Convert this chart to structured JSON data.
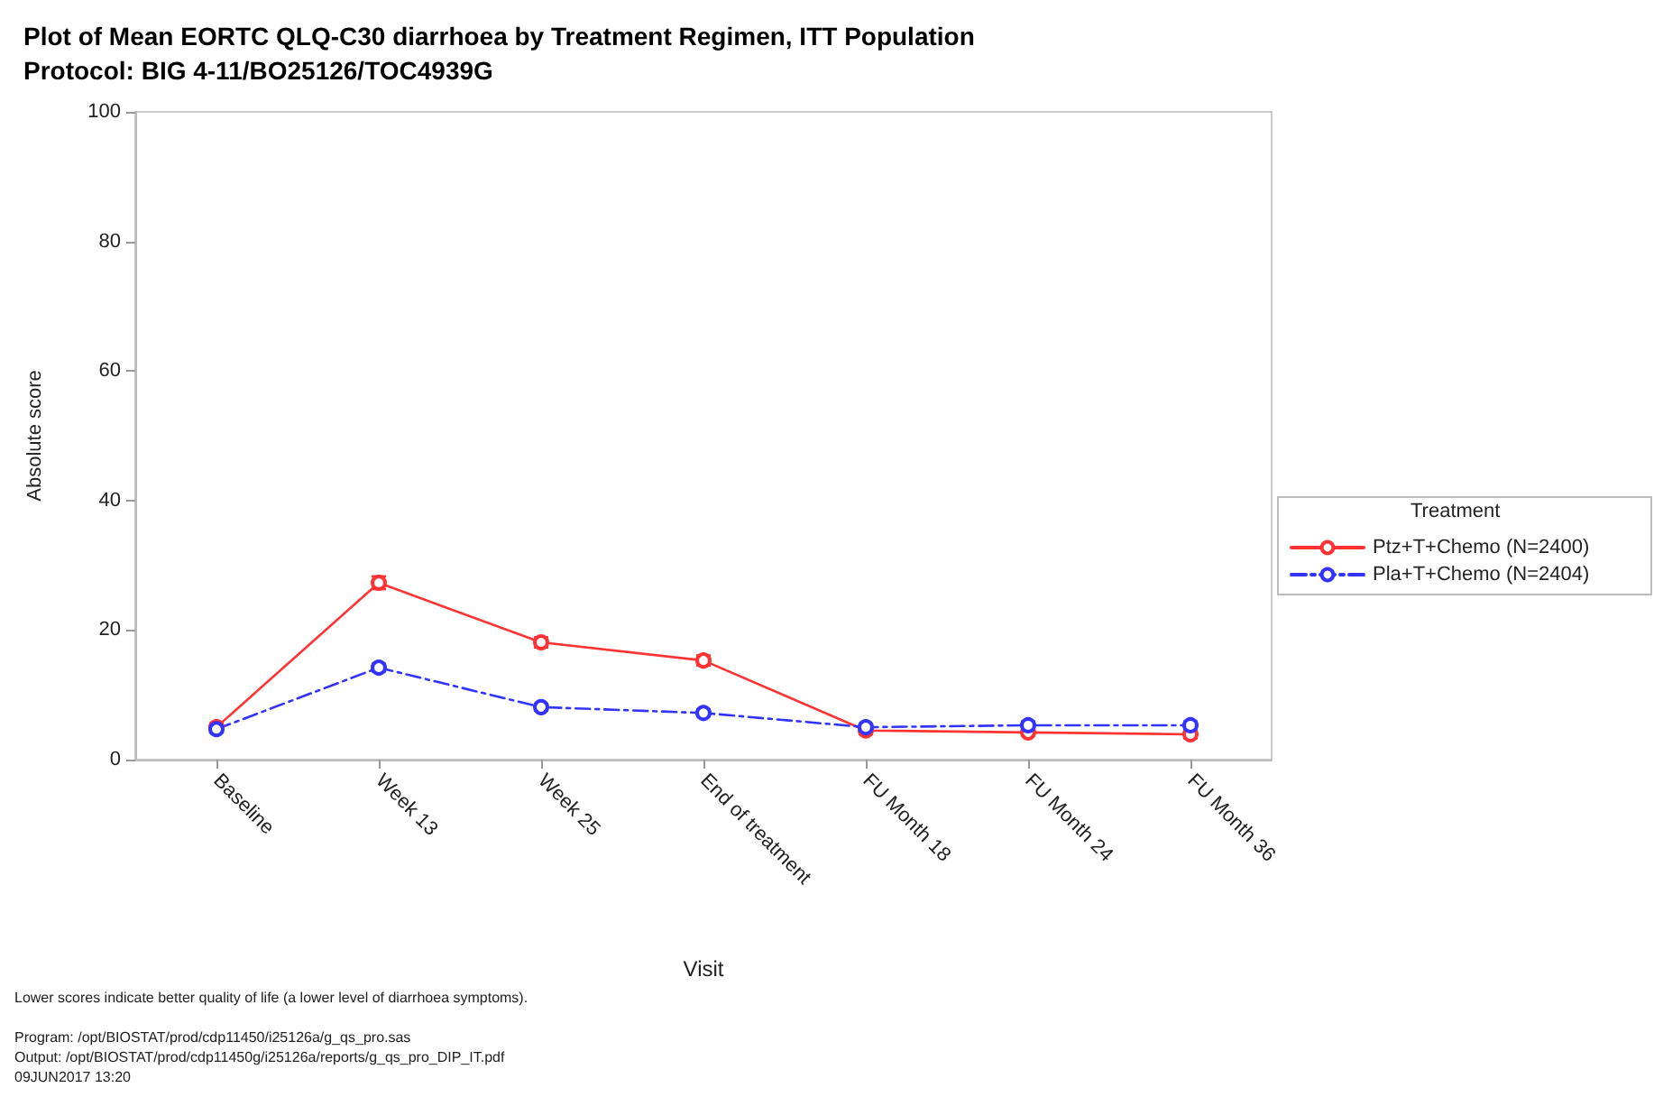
{
  "chart_data": {
    "type": "line",
    "title": "Plot of Mean EORTC QLQ-C30 diarrhoea by Treatment Regimen, ITT Population",
    "subtitle": "Protocol: BIG 4-11/BO25126/TOC4939G",
    "xlabel": "Visit",
    "ylabel": "Absolute score",
    "legend_title": "Treatment",
    "categories": [
      "Baseline",
      "Week 13",
      "Week 25",
      "End of treatment",
      "FU Month 18",
      "FU Month 24",
      "FU Month 36"
    ],
    "series": [
      {
        "name": "Ptz+T+Chemo (N=2400)",
        "color": "#ff3333",
        "line_style": "solid",
        "values": [
          5.0,
          27.3,
          18.1,
          15.3,
          4.5,
          4.2,
          3.9
        ],
        "errors": [
          0.6,
          1.0,
          0.8,
          0.8,
          0.6,
          0.5,
          0.6
        ]
      },
      {
        "name": "Pla+T+Chemo (N=2404)",
        "color": "#3333ff",
        "line_style": "dashed",
        "values": [
          4.7,
          14.2,
          8.1,
          7.2,
          5.0,
          5.3,
          5.3
        ],
        "errors": [
          0.5,
          0.6,
          0.5,
          0.5,
          0.5,
          0.6,
          0.6
        ]
      }
    ],
    "ylim": [
      0,
      100
    ],
    "yticks": [
      0,
      20,
      40,
      60,
      80,
      100
    ],
    "grid": false,
    "legend": "right",
    "marker": "circle",
    "annotations": [
      "Lower scores indicate better quality of life (a lower level of diarrhoea symptoms).",
      "Program: /opt/BIOSTAT/prod/cdp11450/i25126a/g_qs_pro.sas",
      "Output: /opt/BIOSTAT/prod/cdp11450g/i25126a/reports/g_qs_pro_DIP_IT.pdf",
      "09JUN2017 13:20"
    ]
  }
}
